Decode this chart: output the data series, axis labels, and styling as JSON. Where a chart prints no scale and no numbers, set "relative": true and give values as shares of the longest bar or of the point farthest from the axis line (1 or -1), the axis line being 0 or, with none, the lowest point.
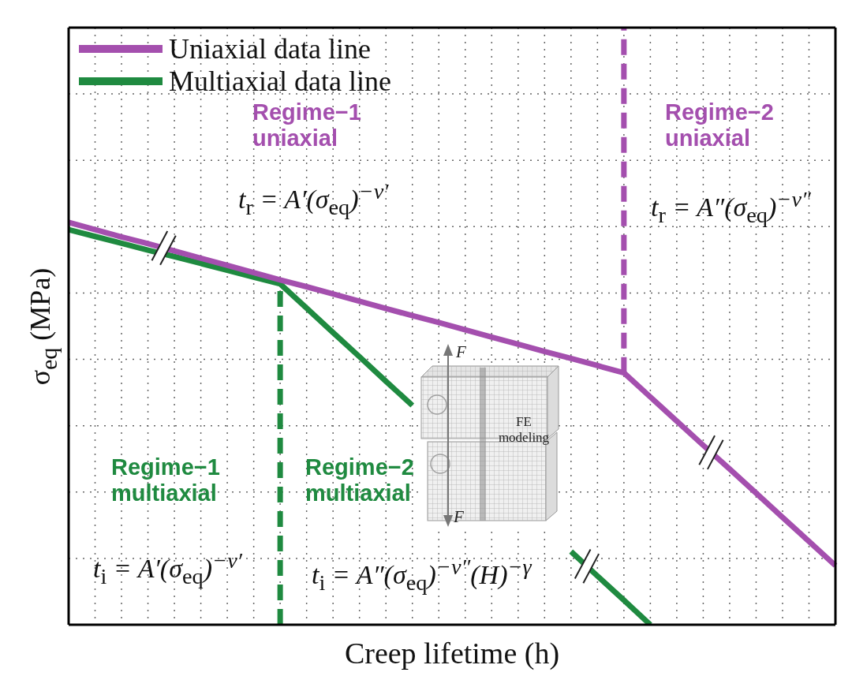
{
  "chart_data": {
    "type": "line",
    "relative": true,
    "xlabel": "Creep lifetime (h)",
    "ylabel": "σ$_{eq}$ (MPa)",
    "categories": [
      null,
      null,
      null,
      null,
      null,
      null,
      null,
      null,
      null,
      null,
      null,
      null,
      null,
      null,
      null,
      null,
      null,
      null,
      null,
      null,
      null,
      null,
      null,
      null,
      null,
      null,
      null,
      null,
      null,
      null
    ],
    "series": [
      {
        "name": "Uniaxial data line",
        "color": "#a44fae",
        "values": [
          1,
          0.982,
          0.964,
          0.947,
          0.929,
          0.911,
          0.893,
          0.875,
          0.857,
          0.84,
          0.822,
          0.804,
          0.786,
          0.768,
          0.751,
          0.733,
          0.715,
          0.697,
          0.679,
          0.662,
          0.644,
          0.626,
          0.566,
          0.506,
          0.446,
          0.387,
          0.327,
          0.267,
          0.207,
          0.147
        ]
      },
      {
        "name": "Multiaxial data line",
        "color": "#1f8a40",
        "values": [
          0.982,
          0.965,
          0.948,
          0.931,
          0.915,
          0.898,
          0.881,
          0.864,
          0.847,
          0.787,
          0.726,
          0.666,
          0.605,
          0.545,
          null,
          null,
          null,
          null,
          null,
          0.182,
          0.121,
          0.061,
          0,
          null,
          null,
          null,
          null,
          null,
          null,
          null
        ]
      }
    ],
    "annotations": [
      "Regime−1 uniaxial",
      "t$_{r}$ = A′(σ$_{eq}$)$^{−ν′}$",
      "Regime−2 uniaxial",
      "t$_{r}$ = A″(σ$_{eq}$)$^{−ν″}$",
      "Regime−1 multiaxial",
      "t$_{i}$ = A′(σ$_{eq}$)$^{−ν′}$",
      "Regime−2 multiaxial",
      "t$_{i}$ = A″(σ$_{eq}$)$^{−ν″}$(H)$^{−γ}$",
      "F",
      "FE modeling",
      "F"
    ],
    "grid": true,
    "legend": "top left",
    "marker": "none"
  }
}
